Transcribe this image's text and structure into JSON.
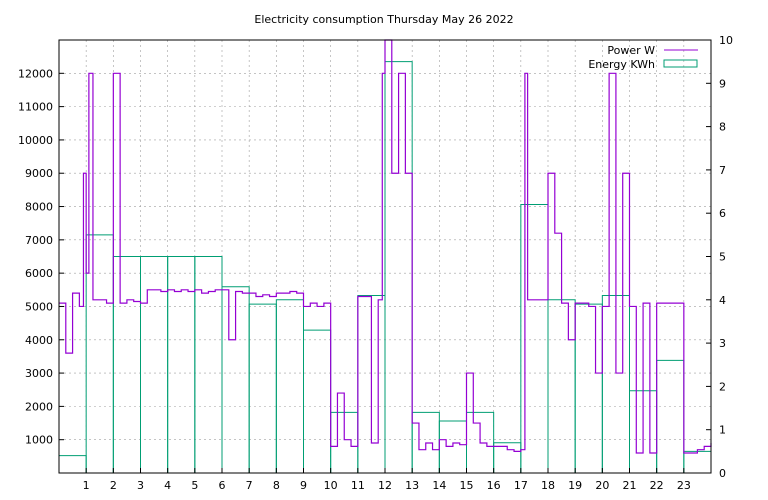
{
  "chart_data": {
    "type": "line",
    "title": "Electricity consumption Thursday May 26 2022",
    "x_ticks": [
      "1",
      "2",
      "3",
      "4",
      "5",
      "6",
      "7",
      "8",
      "9",
      "10",
      "11",
      "12",
      "13",
      "14",
      "15",
      "16",
      "17",
      "18",
      "19",
      "20",
      "21",
      "22",
      "23"
    ],
    "xlim": [
      0,
      24
    ],
    "y_left": {
      "ticks": [
        "1000",
        "2000",
        "3000",
        "4000",
        "5000",
        "6000",
        "7000",
        "8000",
        "9000",
        "10000",
        "11000",
        "12000"
      ],
      "lim": [
        0,
        13000
      ]
    },
    "y_right": {
      "ticks": [
        "0",
        "1",
        "2",
        "3",
        "4",
        "5",
        "6",
        "7",
        "8",
        "9",
        "10"
      ],
      "lim": [
        0,
        10
      ]
    },
    "legend_position": "top-right",
    "grid": true,
    "colors": {
      "power": "#9400d3",
      "energy": "#009e73"
    },
    "series": [
      {
        "name": "Power W",
        "axis": "left",
        "style": "line",
        "x": [
          0.0,
          0.25,
          0.5,
          0.75,
          0.9,
          1.0,
          1.1,
          1.25,
          1.5,
          1.75,
          2.0,
          2.25,
          2.5,
          2.75,
          3.0,
          3.25,
          3.5,
          3.75,
          4.0,
          4.25,
          4.5,
          4.75,
          5.0,
          5.25,
          5.5,
          5.75,
          6.0,
          6.25,
          6.5,
          6.75,
          7.0,
          7.25,
          7.5,
          7.75,
          8.0,
          8.25,
          8.5,
          8.75,
          9.0,
          9.25,
          9.5,
          9.75,
          10.0,
          10.25,
          10.5,
          10.75,
          11.0,
          11.25,
          11.5,
          11.75,
          11.9,
          12.0,
          12.25,
          12.5,
          12.75,
          13.0,
          13.25,
          13.5,
          13.75,
          14.0,
          14.25,
          14.5,
          14.75,
          15.0,
          15.25,
          15.5,
          15.75,
          16.0,
          16.25,
          16.5,
          16.75,
          17.0,
          17.15,
          17.25,
          17.5,
          17.75,
          18.0,
          18.25,
          18.5,
          18.75,
          19.0,
          19.25,
          19.5,
          19.75,
          20.0,
          20.25,
          20.5,
          20.75,
          21.0,
          21.25,
          21.5,
          21.75,
          22.0,
          22.25,
          22.5,
          22.75,
          23.0,
          23.25,
          23.5,
          23.75,
          24.0
        ],
        "y": [
          5100,
          3600,
          5400,
          5000,
          9000,
          6000,
          12000,
          5200,
          5200,
          5100,
          12000,
          5100,
          5200,
          5150,
          5100,
          5500,
          5500,
          5450,
          5500,
          5450,
          5500,
          5450,
          5500,
          5400,
          5450,
          5500,
          5500,
          4000,
          5450,
          5400,
          5400,
          5300,
          5350,
          5300,
          5400,
          5400,
          5450,
          5400,
          5000,
          5100,
          5000,
          5100,
          800,
          2400,
          1000,
          800,
          5300,
          5300,
          900,
          5200,
          12000,
          13000,
          9000,
          12000,
          9000,
          1500,
          700,
          900,
          700,
          1000,
          800,
          900,
          850,
          3000,
          1500,
          900,
          800,
          800,
          800,
          700,
          650,
          700,
          12000,
          5200,
          5200,
          5200,
          9000,
          7200,
          5100,
          4000,
          5100,
          5100,
          5000,
          3000,
          5000,
          12000,
          3000,
          9000,
          5000,
          600,
          5100,
          600,
          5100,
          5100,
          5100,
          5100,
          600,
          600,
          700,
          800,
          900
        ]
      },
      {
        "name": "Energy KWh",
        "axis": "right",
        "style": "steps",
        "x": [
          0,
          1,
          2,
          3,
          4,
          5,
          6,
          7,
          8,
          9,
          10,
          11,
          12,
          13,
          14,
          15,
          16,
          17,
          18,
          19,
          20,
          21,
          22,
          23
        ],
        "y": [
          0.4,
          5.5,
          5.0,
          5.0,
          5.0,
          5.0,
          4.3,
          3.9,
          4.0,
          3.3,
          1.4,
          4.1,
          9.5,
          1.4,
          1.2,
          1.4,
          0.7,
          6.2,
          4.0,
          3.9,
          4.1,
          1.9,
          2.6,
          0.5
        ]
      }
    ]
  }
}
